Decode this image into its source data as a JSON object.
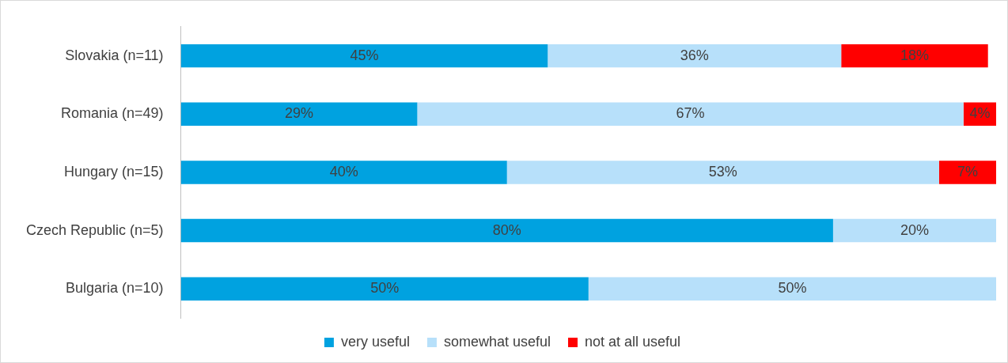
{
  "chart_data": {
    "type": "bar",
    "orientation": "horizontal",
    "stacked": true,
    "legend": "bottom",
    "categories": [
      "Slovakia (n=11)",
      "Romania (n=49)",
      "Hungary (n=15)",
      "Czech Republic (n=5)",
      "Bulgaria (n=10)"
    ],
    "series": [
      {
        "name": "very useful",
        "color": "#00a2e0",
        "values": [
          45,
          29,
          40,
          80,
          50
        ],
        "value_labels": [
          "45%",
          "29%",
          "40%",
          "80%",
          "50%"
        ]
      },
      {
        "name": "somewhat useful",
        "color": "#b7e0fa",
        "values": [
          36,
          67,
          53,
          20,
          50
        ],
        "value_labels": [
          "36%",
          "67%",
          "53%",
          "20%",
          "50%"
        ]
      },
      {
        "name": "not at all useful",
        "color": "#ff0000",
        "values": [
          18,
          4,
          7,
          null,
          null
        ],
        "value_labels": [
          "18%",
          "4%",
          "7%",
          null,
          null
        ]
      }
    ]
  }
}
